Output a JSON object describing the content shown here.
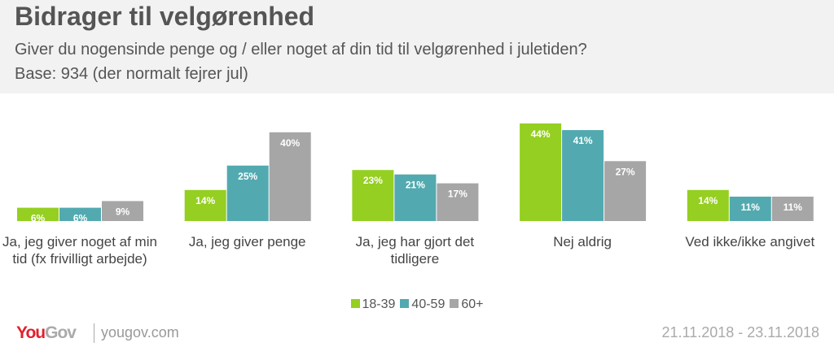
{
  "header": {
    "title": "Bidrager til velgørenhed",
    "subtitle": "Giver du nogensinde penge og / eller noget af din tid til velgørenhed i juletiden?",
    "base": "Base: 934 (der normalt fejrer jul)"
  },
  "chart_data": {
    "type": "bar",
    "categories": [
      "Ja, jeg giver noget af min tid (fx frivilligt arbejde)",
      "Ja, jeg giver penge",
      "Ja, jeg har gjort det tidligere",
      "Nej aldrig",
      "Ved ikke/ikke angivet"
    ],
    "series": [
      {
        "name": "18-39",
        "color": "#95cf21",
        "values": [
          6,
          14,
          23,
          44,
          14
        ]
      },
      {
        "name": "40-59",
        "color": "#52aab0",
        "values": [
          6,
          25,
          21,
          41,
          11
        ]
      },
      {
        "name": "60+",
        "color": "#a6a6a6",
        "values": [
          9,
          40,
          17,
          27,
          11
        ]
      }
    ],
    "unit": "%",
    "legend": "bottom",
    "grid": false
  },
  "footer": {
    "logo": "YouGov",
    "site": "yougov.com",
    "date": "21.11.2018 - 23.11.2018"
  }
}
